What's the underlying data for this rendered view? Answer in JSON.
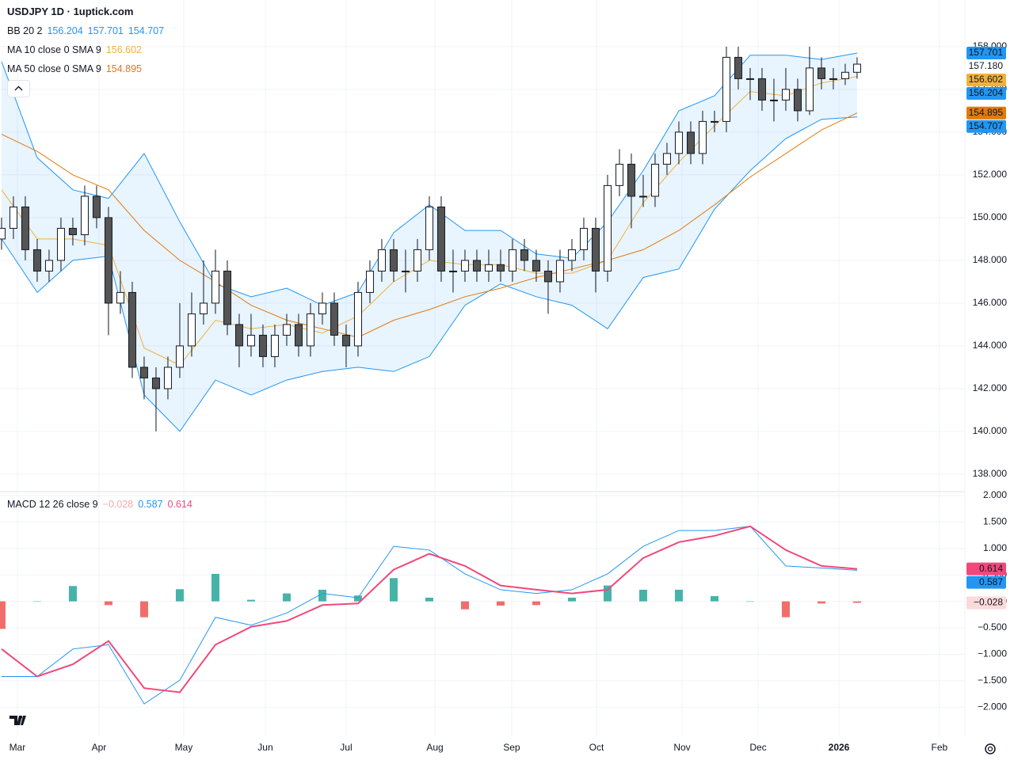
{
  "chart_data": [
    {
      "type": "candlestick",
      "title": "USDJPY 1D · 1uptick.com",
      "xlim": [
        -0.13,
        81.07
      ],
      "xticks": [
        {
          "value": 1.33,
          "label": "Mar"
        },
        {
          "value": 8.2,
          "label": "Apr"
        },
        {
          "value": 15.33,
          "label": "May"
        },
        {
          "value": 22.2,
          "label": "Jun"
        },
        {
          "value": 29,
          "label": "Jul"
        },
        {
          "value": 36.47,
          "label": "Aug"
        },
        {
          "value": 42.93,
          "label": "Sep"
        },
        {
          "value": 50.07,
          "label": "Oct"
        },
        {
          "value": 57.27,
          "label": "Nov"
        },
        {
          "value": 63.67,
          "label": "Dec"
        },
        {
          "value": 70.47,
          "label": "2026"
        },
        {
          "value": 78.93,
          "label": "Feb"
        }
      ],
      "ylim": [
        137.22,
        159.07
      ],
      "yticks": [
        {
          "value": 138,
          "label": "138.000"
        },
        {
          "value": 140,
          "label": "140.000"
        },
        {
          "value": 142,
          "label": "142.000"
        },
        {
          "value": 144,
          "label": "144.000"
        },
        {
          "value": 146,
          "label": "146.000"
        },
        {
          "value": 148,
          "label": "148.000"
        },
        {
          "value": 150,
          "label": "150.000"
        },
        {
          "value": 152,
          "label": "152.000"
        },
        {
          "value": 154,
          "label": "154.000"
        },
        {
          "value": 156,
          "label": "156.000"
        },
        {
          "value": 158,
          "label": "158.000"
        }
      ],
      "grid": true,
      "x": [
        0,
        1,
        2,
        3,
        4,
        5,
        6,
        7,
        8,
        9,
        10,
        11,
        12,
        13,
        14,
        15,
        16,
        17,
        18,
        19,
        20,
        21,
        22,
        23,
        24,
        25,
        26,
        27,
        28,
        29,
        30,
        31,
        32,
        33,
        34,
        35,
        36,
        37,
        38,
        39,
        40,
        41,
        42,
        43,
        44,
        45,
        46,
        47,
        48,
        49,
        50,
        51,
        52,
        53,
        54,
        55,
        56,
        57,
        58,
        59,
        60,
        61,
        62,
        63,
        64,
        65,
        66,
        67,
        68,
        69,
        70,
        71,
        72
      ],
      "candles": {
        "up_color": "#ffffff",
        "down_color": "#555555",
        "values": [
          [
            149,
            150,
            148.5,
            149.5
          ],
          [
            149.5,
            151,
            149,
            150.5
          ],
          [
            150.5,
            151,
            148,
            148.5
          ],
          [
            148.5,
            149,
            147,
            147.5
          ],
          [
            147.5,
            148.5,
            147,
            148
          ],
          [
            148,
            150,
            147.5,
            149.5
          ],
          [
            149.5,
            150,
            148.7,
            149.2
          ],
          [
            149.2,
            151.5,
            148.7,
            151
          ],
          [
            151,
            151.5,
            149.5,
            150
          ],
          [
            150,
            150.5,
            144.5,
            146
          ],
          [
            146,
            147.5,
            145.5,
            146.5
          ],
          [
            146.5,
            147,
            142.5,
            143
          ],
          [
            143,
            143.5,
            141.5,
            142.5
          ],
          [
            142.5,
            143,
            140,
            142
          ],
          [
            142,
            143.5,
            141.5,
            143
          ],
          [
            143,
            146,
            142.5,
            144
          ],
          [
            144,
            146.5,
            143.5,
            145.5
          ],
          [
            145.5,
            148,
            145,
            146
          ],
          [
            146,
            148.5,
            145.5,
            147.5
          ],
          [
            147.5,
            148,
            144.5,
            145
          ],
          [
            145,
            145.5,
            143,
            144
          ],
          [
            144,
            145.5,
            143.5,
            144.5
          ],
          [
            144.5,
            145,
            143,
            143.5
          ],
          [
            143.5,
            145,
            143,
            144.5
          ],
          [
            144.5,
            145.5,
            144,
            145
          ],
          [
            145,
            145.5,
            143.5,
            144
          ],
          [
            144,
            146,
            143.5,
            145.5
          ],
          [
            145.5,
            146.5,
            145,
            146
          ],
          [
            146,
            146.5,
            144,
            144.5
          ],
          [
            144.5,
            145,
            143,
            144
          ],
          [
            144,
            147,
            143.5,
            146.5
          ],
          [
            146.5,
            148,
            146,
            147.5
          ],
          [
            147.5,
            149,
            147,
            148.5
          ],
          [
            148.5,
            149,
            147,
            147.5
          ],
          [
            147.5,
            148.5,
            146.5,
            147.5
          ],
          [
            147.5,
            149,
            147,
            148.5
          ],
          [
            148.5,
            151,
            148,
            150.5
          ],
          [
            150.5,
            151,
            147,
            147.5
          ],
          [
            147.5,
            148.5,
            146.5,
            147.5
          ],
          [
            147.5,
            148.5,
            147,
            148
          ],
          [
            148,
            148.5,
            147,
            147.5
          ],
          [
            147.5,
            148.5,
            147,
            147.8
          ],
          [
            147.8,
            148.5,
            147,
            147.5
          ],
          [
            147.5,
            149,
            147,
            148.5
          ],
          [
            148.5,
            149,
            147.5,
            148
          ],
          [
            148,
            148.5,
            147,
            147.5
          ],
          [
            147.5,
            148,
            145.5,
            147
          ],
          [
            147,
            148.5,
            146.5,
            148
          ],
          [
            148,
            149,
            147.5,
            148.5
          ],
          [
            148.5,
            150,
            148,
            149.5
          ],
          [
            149.5,
            150,
            146.5,
            147.5
          ],
          [
            147.5,
            152,
            147,
            151.5
          ],
          [
            151.5,
            153.2,
            151,
            152.5
          ],
          [
            152.5,
            153,
            149.5,
            151
          ],
          [
            151,
            152,
            150.5,
            151
          ],
          [
            151,
            153,
            150.5,
            152.5
          ],
          [
            152.5,
            153.5,
            152,
            153
          ],
          [
            153,
            154.5,
            152.5,
            154
          ],
          [
            154,
            154.5,
            152.5,
            153
          ],
          [
            153,
            155,
            152.5,
            154.5
          ],
          [
            154.5,
            155,
            154,
            154.5
          ],
          [
            154.5,
            158,
            154,
            157.5
          ],
          [
            157.5,
            158,
            156,
            156.5
          ],
          [
            156.5,
            157,
            155.5,
            156.5
          ],
          [
            156.5,
            157,
            155,
            155.5
          ],
          [
            155.5,
            156.5,
            154.5,
            155.5
          ],
          [
            155.5,
            157,
            155,
            156
          ],
          [
            156,
            156.5,
            154.5,
            155
          ],
          [
            155,
            158,
            154.8,
            157
          ],
          [
            157,
            157.5,
            156,
            156.5
          ],
          [
            156.5,
            157,
            156,
            156.5
          ],
          [
            156.5,
            157.2,
            156.2,
            156.8
          ],
          [
            156.8,
            157.5,
            156.5,
            157.18
          ]
        ]
      },
      "last_price": {
        "value": 157.18,
        "label": "157.180"
      },
      "overlay_x": [
        0,
        3,
        6,
        9,
        12,
        15,
        18,
        21,
        24,
        27,
        30,
        33,
        36,
        39,
        42,
        45,
        48,
        51,
        54,
        57,
        60,
        63,
        66,
        69,
        72
      ],
      "overlays": [
        {
          "type": "band",
          "name": "BB 20 2",
          "color": "#2196f3",
          "fill": "rgba(33,150,243,0.1)",
          "upper": [
            157.3,
            152.8,
            151.3,
            150.9,
            153,
            149.8,
            146.9,
            146.3,
            146.7,
            145.9,
            146.5,
            149.3,
            150.6,
            149.4,
            149.4,
            148.3,
            148.1,
            149.8,
            152.2,
            155,
            155.7,
            157.6,
            157.6,
            157.4,
            157.701
          ],
          "lower": [
            149,
            146.5,
            148,
            148.2,
            141.7,
            140,
            142.4,
            141.7,
            142.4,
            142.8,
            143,
            142.8,
            143.5,
            145.9,
            146.9,
            146.3,
            145.9,
            144.8,
            147.2,
            147.6,
            150.4,
            152.2,
            153.7,
            154.6,
            154.707
          ],
          "legend_values": [
            156.204,
            157.701,
            154.707
          ]
        },
        {
          "type": "line",
          "name": "MA 10 close 0 SMA 9",
          "color": "#f2b13a",
          "values": [
            151.3,
            149,
            149,
            148.7,
            143.9,
            143.1,
            145.2,
            144.8,
            145,
            144.6,
            145.4,
            147,
            148,
            147.8,
            147.8,
            147.4,
            147.4,
            148,
            150.7,
            152.6,
            154.3,
            155.9,
            155.7,
            156.3,
            156.602
          ],
          "legend_values": [
            156.602
          ]
        },
        {
          "type": "line",
          "name": "MA 50 close 0 SMA 9",
          "color": "#e07b0e",
          "values": [
            153.9,
            153.1,
            152,
            151.3,
            149.4,
            148,
            147,
            145.9,
            145.2,
            144.8,
            144.4,
            145.2,
            145.7,
            146.3,
            146.7,
            147.2,
            147.6,
            148,
            148.5,
            149.4,
            150.6,
            151.9,
            153,
            154.1,
            154.895
          ],
          "legend_values": [
            154.895
          ]
        }
      ]
    },
    {
      "type": "macd",
      "name": "MACD 12 26 close 9",
      "ylim": [
        -2.55,
        2.06
      ],
      "yticks": [
        {
          "value": 2,
          "label": "2.000"
        },
        {
          "value": 1.5,
          "label": "1.500"
        },
        {
          "value": 1,
          "label": "1.000"
        },
        {
          "value": 0.5,
          "label": "0.500"
        },
        {
          "value": 0,
          "label": "0.000"
        },
        {
          "value": -0.5,
          "label": "−0.500"
        },
        {
          "value": -1,
          "label": "−1.000"
        },
        {
          "value": -1.5,
          "label": "−1.500"
        },
        {
          "value": -2,
          "label": "−2.000"
        }
      ],
      "x": [
        0,
        3,
        6,
        9,
        12,
        15,
        18,
        21,
        24,
        27,
        30,
        33,
        36,
        39,
        42,
        45,
        48,
        51,
        54,
        57,
        60,
        63,
        66,
        69,
        72
      ],
      "histogram": {
        "pos_color": "#26a69a",
        "neg_color": "#ef5350",
        "badge_color": "#fcdada",
        "legend_color": "#f7a9a8",
        "values": [
          -0.52,
          0,
          0.29,
          -0.07,
          -0.3,
          0.23,
          0.52,
          0.03,
          0.15,
          0.22,
          0.11,
          0.44,
          0.07,
          -0.15,
          -0.08,
          -0.07,
          0.07,
          0.3,
          0.22,
          0.22,
          0.1,
          0,
          -0.3,
          -0.04,
          -0.028
        ],
        "legend_value": {
          "value": -0.028,
          "label": "−0.028"
        }
      },
      "macd": {
        "color": "#2196f3",
        "values": [
          -1.42,
          -1.42,
          -0.9,
          -0.82,
          -1.94,
          -1.49,
          -0.3,
          -0.45,
          -0.22,
          0.15,
          0.07,
          1.04,
          0.97,
          0.52,
          0.22,
          0.15,
          0.22,
          0.52,
          1.04,
          1.34,
          1.34,
          1.42,
          0.67,
          0.63,
          0.587
        ],
        "legend_value": 0.587
      },
      "signal": {
        "color": "#f0487b",
        "values": [
          -0.9,
          -1.42,
          -1.19,
          -0.75,
          -1.64,
          -1.72,
          -0.82,
          -0.48,
          -0.37,
          -0.07,
          -0.04,
          0.6,
          0.9,
          0.67,
          0.3,
          0.22,
          0.15,
          0.22,
          0.82,
          1.12,
          1.24,
          1.42,
          0.97,
          0.67,
          0.614
        ],
        "legend_value": 0.614
      }
    }
  ]
}
